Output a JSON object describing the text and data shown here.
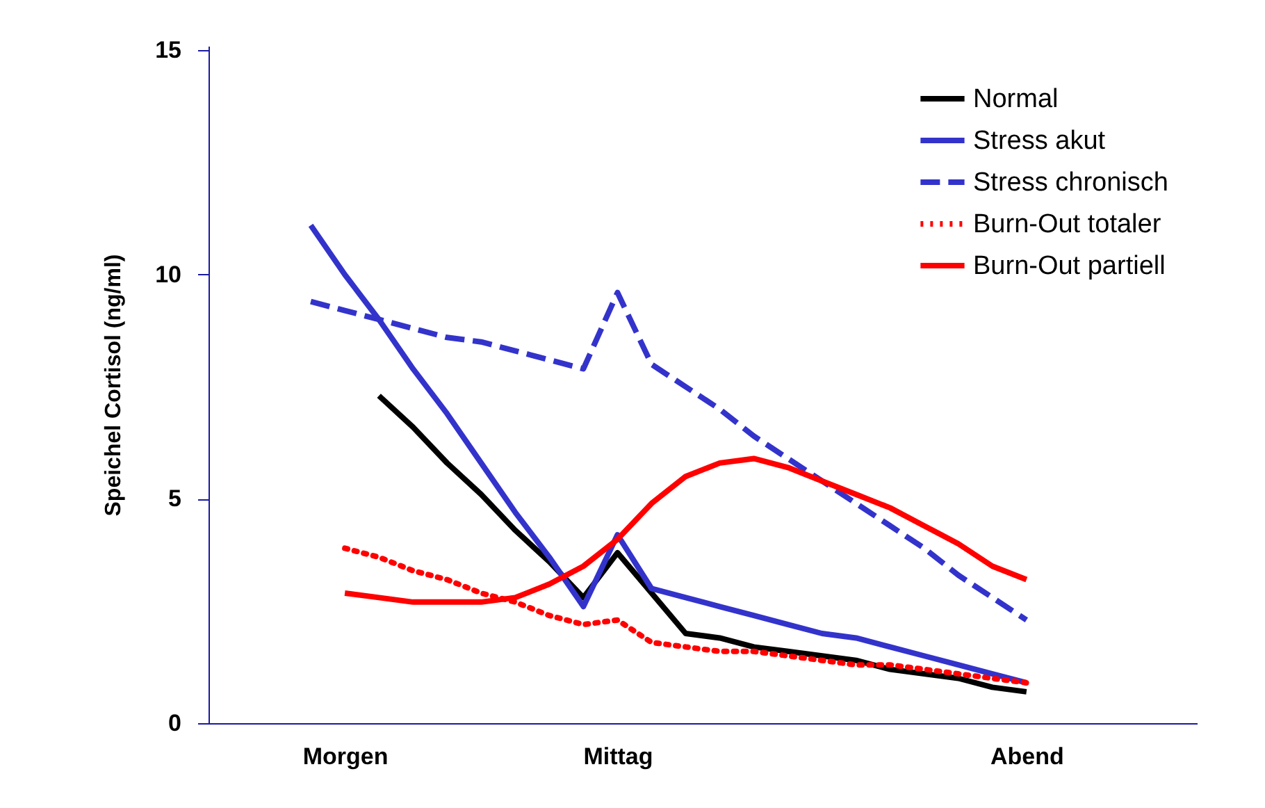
{
  "chart_data": {
    "type": "line",
    "ylabel": "Speichel Cortisol (ng/ml)",
    "categories": [
      null,
      null,
      null,
      null,
      "Morgen",
      null,
      null,
      null,
      null,
      null,
      null,
      null,
      "Mittag",
      null,
      null,
      null,
      null,
      null,
      null,
      null,
      null,
      null,
      null,
      null,
      "Abend",
      null,
      null,
      null,
      null,
      null
    ],
    "ylim": [
      0,
      15.1
    ],
    "yticks": [
      0,
      5,
      10,
      15
    ],
    "grid": false,
    "legend": "top right",
    "marker": "none",
    "series": [
      {
        "name": "Normal",
        "color": "#000000",
        "line_style": "solid",
        "values": [
          null,
          null,
          null,
          null,
          null,
          7.3,
          6.6,
          5.8,
          5.1,
          4.3,
          3.6,
          2.8,
          3.8,
          2.9,
          2.0,
          1.9,
          1.7,
          1.6,
          1.5,
          1.4,
          1.2,
          1.1,
          1.0,
          0.8,
          0.7,
          null,
          null,
          null,
          null,
          null
        ]
      },
      {
        "name": "Stress akut",
        "color": "#3333cc",
        "line_style": "solid",
        "values": [
          null,
          null,
          null,
          11.1,
          10.0,
          9.0,
          7.9,
          6.9,
          5.8,
          4.7,
          3.7,
          2.6,
          4.2,
          3.0,
          2.8,
          2.6,
          2.4,
          2.2,
          2.0,
          1.9,
          1.7,
          1.5,
          1.3,
          1.1,
          0.9,
          null,
          null,
          null,
          null,
          null
        ]
      },
      {
        "name": "Stress chronisch",
        "color": "#3333cc",
        "line_style": "dashed",
        "values": [
          null,
          null,
          null,
          9.4,
          9.2,
          9.0,
          8.8,
          8.6,
          8.5,
          8.3,
          8.1,
          7.9,
          9.6,
          8.0,
          7.5,
          7.0,
          6.4,
          5.9,
          5.4,
          4.9,
          4.4,
          3.9,
          3.3,
          2.8,
          2.3,
          null,
          null,
          null,
          null,
          null
        ]
      },
      {
        "name": "Burn-Out totaler",
        "color": "#ff0000",
        "line_style": "dotted",
        "values": [
          null,
          null,
          null,
          null,
          3.9,
          3.7,
          3.4,
          3.2,
          2.9,
          2.7,
          2.4,
          2.2,
          2.3,
          1.8,
          1.7,
          1.6,
          1.6,
          1.5,
          1.4,
          1.3,
          1.3,
          1.2,
          1.1,
          1.0,
          0.9,
          null,
          null,
          null,
          null,
          null
        ]
      },
      {
        "name": "Burn-Out partiell",
        "color": "#ff0000",
        "line_style": "solid",
        "values": [
          null,
          null,
          null,
          null,
          2.9,
          2.8,
          2.7,
          2.7,
          2.7,
          2.8,
          3.1,
          3.5,
          4.1,
          4.9,
          5.5,
          5.8,
          5.9,
          5.7,
          5.4,
          5.1,
          4.8,
          4.4,
          4.0,
          3.5,
          3.2,
          null,
          null,
          null,
          null,
          null
        ]
      }
    ]
  }
}
